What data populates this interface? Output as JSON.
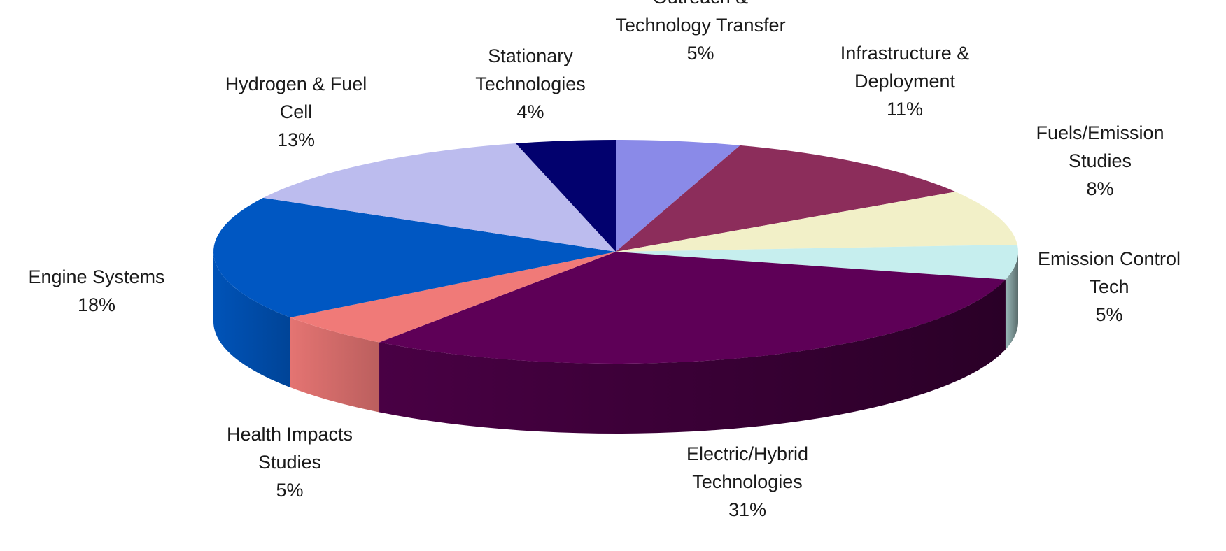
{
  "chart_data": {
    "type": "pie",
    "title": "",
    "style": "3d",
    "slices": [
      {
        "name_lines": [
          "Outreach &",
          "Technology Transfer"
        ],
        "value": 5,
        "value_label": "5%",
        "color": "#8a8ae8"
      },
      {
        "name_lines": [
          "Infrastructure &",
          "Deployment"
        ],
        "value": 11,
        "value_label": "11%",
        "color": "#8c2d5b"
      },
      {
        "name_lines": [
          "Fuels/Emission",
          "Studies"
        ],
        "value": 8,
        "value_label": "8%",
        "color": "#f2f0c8"
      },
      {
        "name_lines": [
          "Emission Control",
          "Tech"
        ],
        "value": 5,
        "value_label": "5%",
        "color": "#c6eeee"
      },
      {
        "name_lines": [
          "Electric/Hybrid",
          "Technologies"
        ],
        "value": 31,
        "value_label": "31%",
        "color": "#5e0057"
      },
      {
        "name_lines": [
          "Health Impacts",
          "Studies"
        ],
        "value": 5,
        "value_label": "5%",
        "color": "#f07a78"
      },
      {
        "name_lines": [
          "Engine Systems"
        ],
        "value": 18,
        "value_label": "18%",
        "color": "#0057c2"
      },
      {
        "name_lines": [
          "Hydrogen & Fuel",
          "Cell"
        ],
        "value": 13,
        "value_label": "13%",
        "color": "#bcbcee"
      },
      {
        "name_lines": [
          "Stationary",
          "Technologies"
        ],
        "value": 4,
        "value_label": "4%",
        "color": "#02016e"
      }
    ]
  }
}
